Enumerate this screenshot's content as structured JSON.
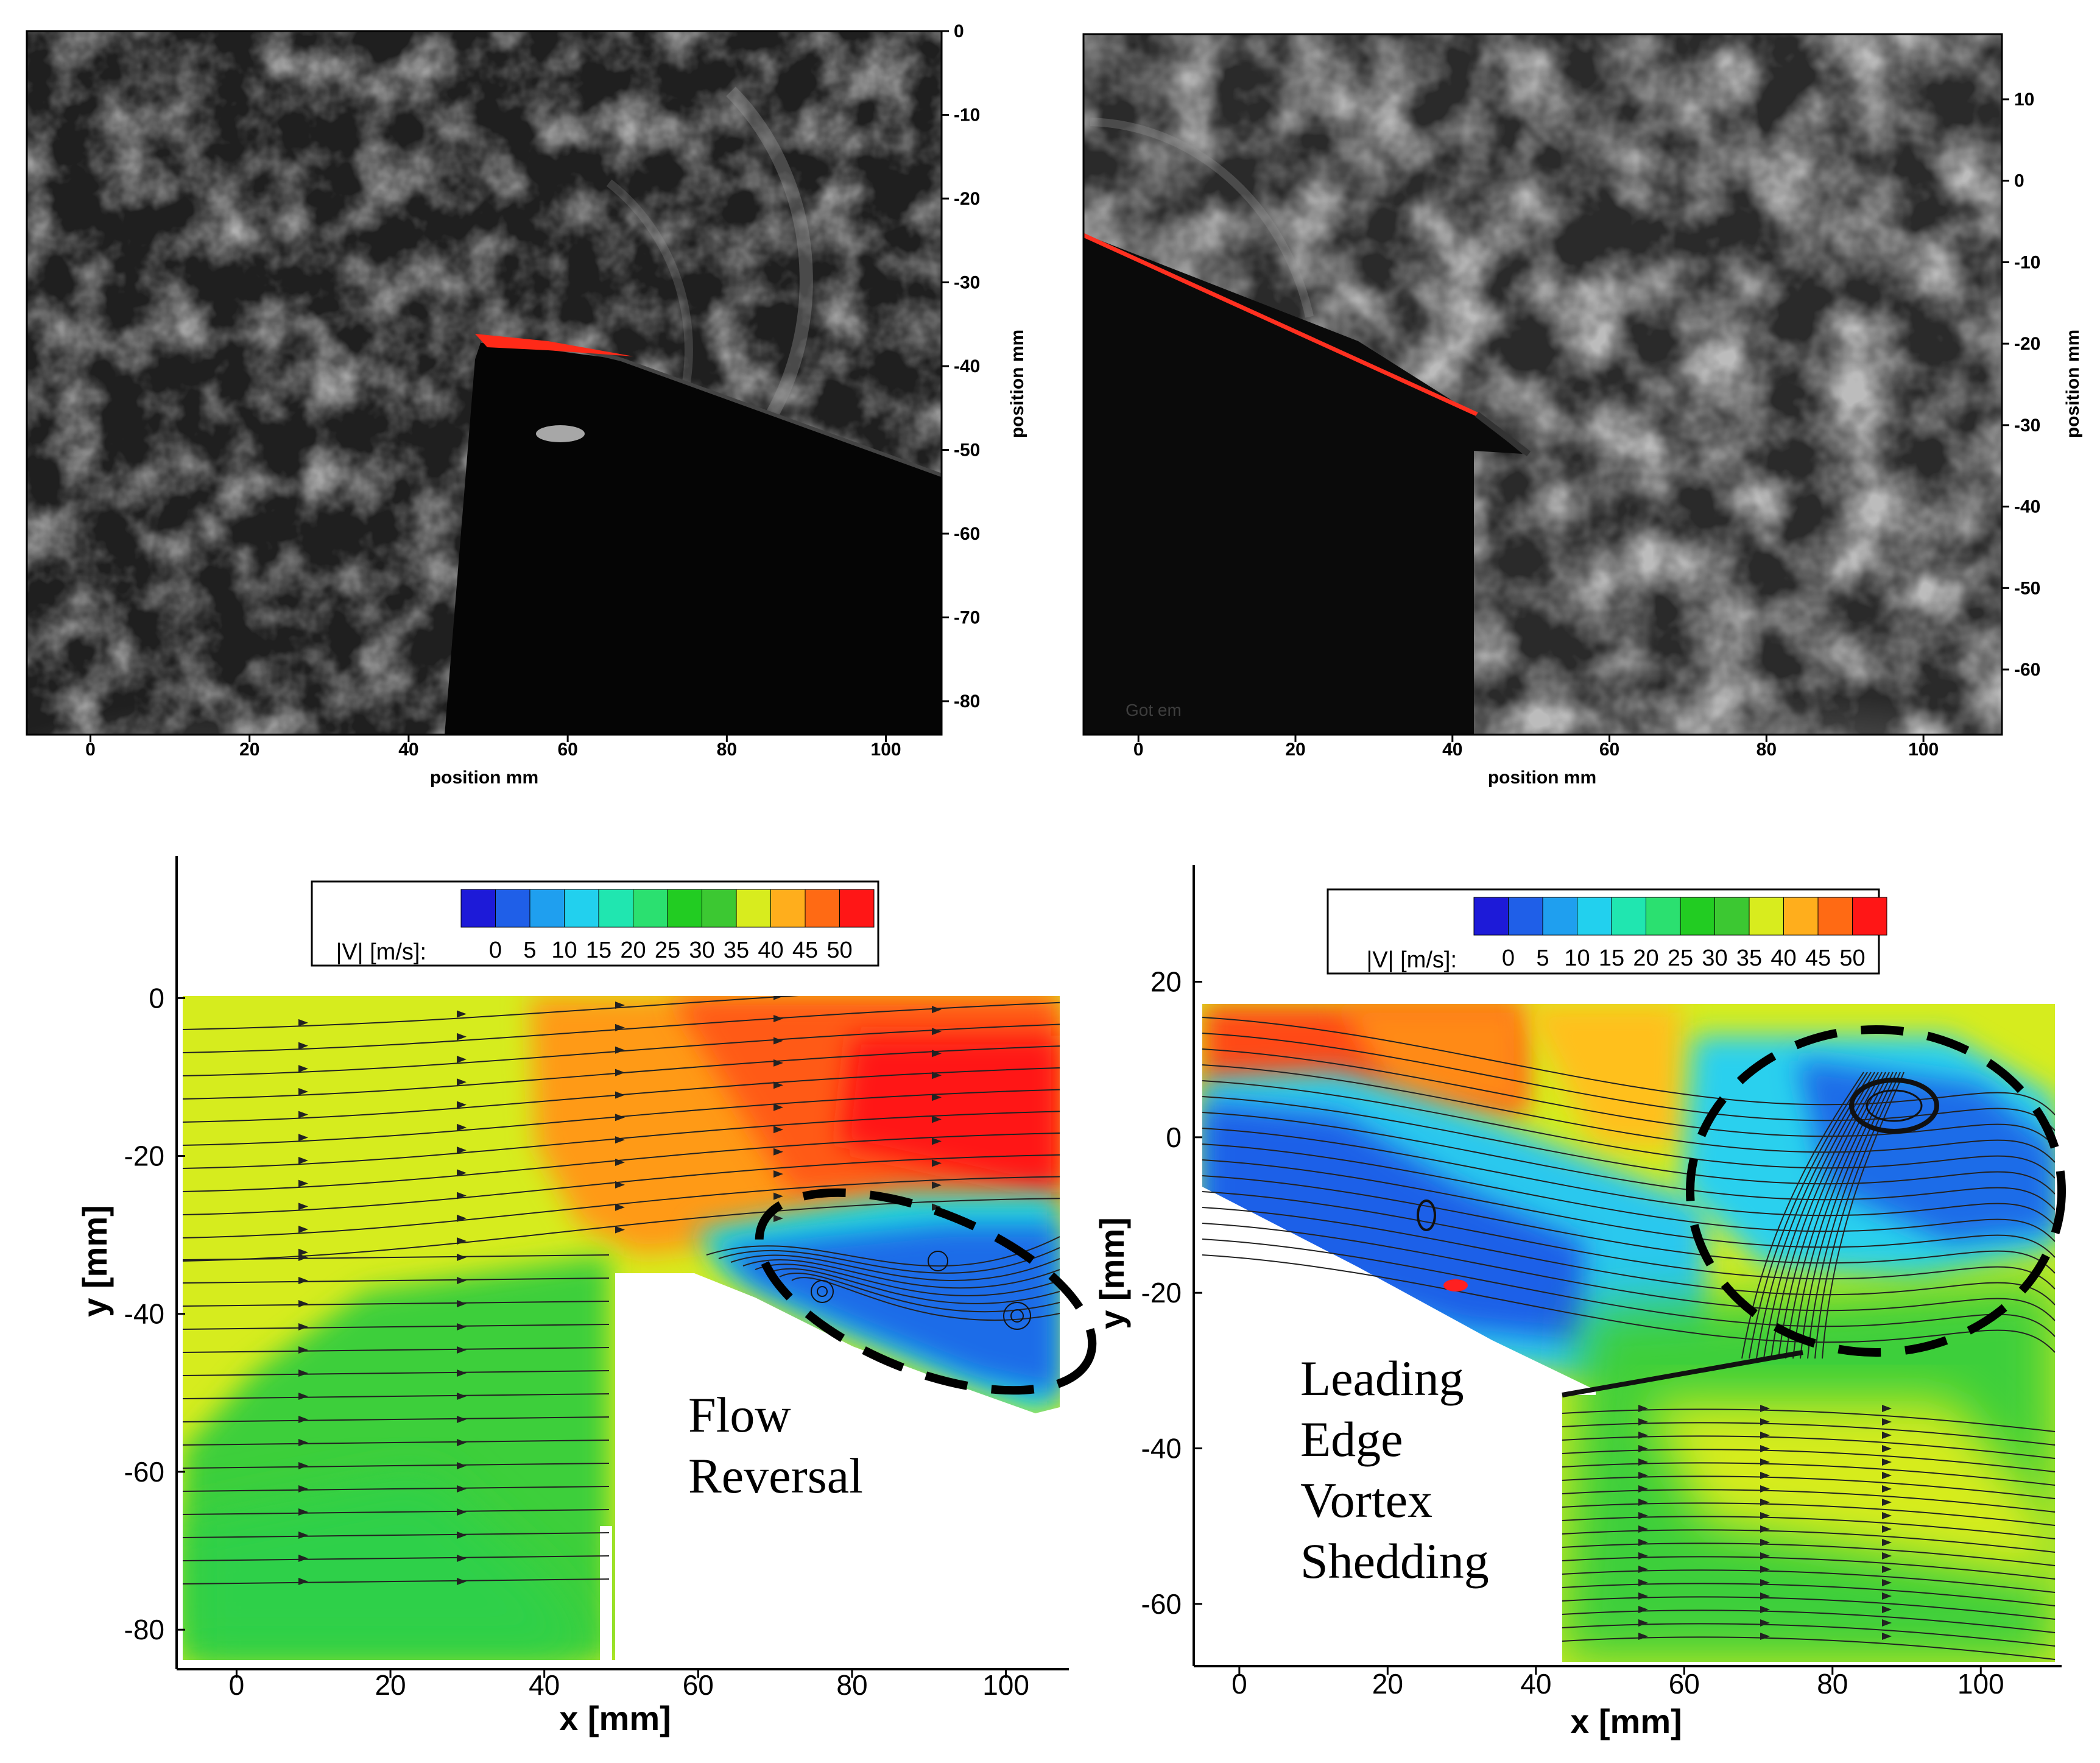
{
  "chart_data": [
    {
      "type": "heatmap",
      "panel": "top-left",
      "x_ticks": [
        "0",
        "20",
        "40",
        "60",
        "80",
        "100"
      ],
      "y_ticks": [
        "0",
        "-10",
        "-20",
        "-30",
        "-40",
        "-50",
        "-60",
        "-70",
        "-80"
      ],
      "xlabel": "position mm",
      "ylabel": "position mm",
      "xlim": [
        -8,
        107
      ],
      "ylim": [
        -84,
        0
      ],
      "y_axis_side": "right",
      "grid": false
    },
    {
      "type": "heatmap",
      "panel": "top-right",
      "x_ticks": [
        "0",
        "20",
        "40",
        "60",
        "80",
        "100"
      ],
      "y_ticks": [
        "10",
        "0",
        "-10",
        "-20",
        "-30",
        "-40",
        "-50",
        "-60"
      ],
      "xlabel": "position mm",
      "ylabel": "position mm",
      "xlim": [
        -7,
        110
      ],
      "ylim": [
        -68,
        18
      ],
      "y_axis_side": "right",
      "grid": false,
      "watermark": "Got em"
    },
    {
      "type": "heatmap",
      "panel": "bottom-left",
      "colorbar": {
        "label": "|V| [m/s]:",
        "ticks": [
          "0",
          "5",
          "10",
          "15",
          "20",
          "25",
          "30",
          "35",
          "40",
          "45",
          "50"
        ],
        "colors": [
          "#1d1ad8",
          "#1f5fe8",
          "#1f9fef",
          "#22d0ee",
          "#20e6b0",
          "#2be070",
          "#22cc22",
          "#3cc832",
          "#d8ec1e",
          "#ffae1c",
          "#ff6a14",
          "#ff1616"
        ]
      },
      "x_ticks": [
        "0",
        "20",
        "40",
        "60",
        "80",
        "100"
      ],
      "y_ticks": [
        "0",
        "-20",
        "-40",
        "-60",
        "-80"
      ],
      "xlabel": "x [mm]",
      "ylabel": "y [mm]",
      "xlim": [
        -7,
        107
      ],
      "ylim": [
        -85,
        18
      ],
      "annotation": [
        "Flow",
        "Reversal"
      ]
    },
    {
      "type": "heatmap",
      "panel": "bottom-right",
      "colorbar": {
        "label": "|V| [m/s]:",
        "ticks": [
          "0",
          "5",
          "10",
          "15",
          "20",
          "25",
          "30",
          "35",
          "40",
          "45",
          "50"
        ],
        "colors": [
          "#1d1ad8",
          "#1f5fe8",
          "#1f9fef",
          "#22d0ee",
          "#20e6b0",
          "#2be070",
          "#22cc22",
          "#3cc832",
          "#d8ec1e",
          "#ffae1c",
          "#ff6a14",
          "#ff1616"
        ]
      },
      "x_ticks": [
        "0",
        "20",
        "40",
        "60",
        "80",
        "100"
      ],
      "y_ticks": [
        "20",
        "0",
        "-20",
        "-40",
        "-60"
      ],
      "xlabel": "x [mm]",
      "ylabel": "y [mm]",
      "xlim": [
        -5,
        110
      ],
      "ylim": [
        -68,
        35
      ],
      "annotation": [
        "Leading",
        "Edge",
        "Vortex",
        "Shedding"
      ]
    }
  ]
}
